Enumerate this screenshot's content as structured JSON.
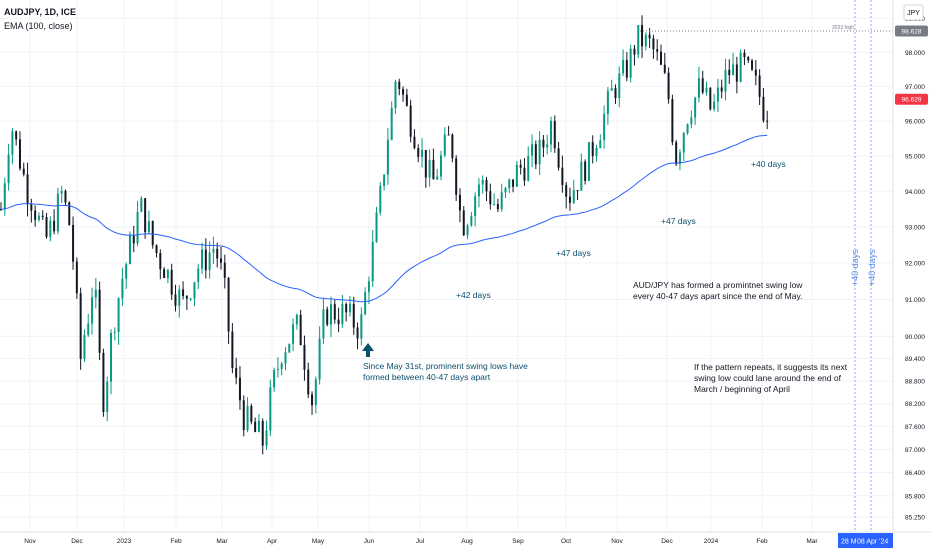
{
  "header": {
    "symbol": "AUDJPY, 1D, ICE",
    "indicator": "EMA (100, close)",
    "currency": "JPY"
  },
  "price_labels": {
    "high_line_label": "2023 high",
    "high_value": "98.628",
    "last_value": "96.629"
  },
  "annotations": {
    "may_note_line1": "Since May 31st, prominent swing lows have",
    "may_note_line2": "formed between 40-47 days apart",
    "pattern_line1": "AUD/JPY has formed a promintnet swing low",
    "pattern_line2": "every 40-47 days apart since the end of May.",
    "next_line1": "If the pattern repeats, it suggests its next",
    "next_line2": "swing low could lane around the end of",
    "next_line3": "March / beginning of April",
    "gap_aug": "+42 days",
    "gap_oct": "+47 days",
    "gap_dec": "+47 days",
    "gap_feb": "+40 days",
    "proj_1": "+40 days",
    "proj_2": "+40 days"
  },
  "time_labels": {
    "left": "28 M",
    "right": "08 Apr '24"
  },
  "colors": {
    "up": "#089981",
    "down": "#131722",
    "ema": "#2962ff",
    "annotation": "#0b4f6c",
    "projection": "#5b8de8",
    "last_price": "#f23645"
  },
  "chart_data": {
    "type": "candlestick",
    "title": "AUDJPY, 1D, ICE",
    "series": [
      {
        "name": "AUDJPY"
      },
      {
        "name": "EMA (100, close)"
      }
    ],
    "y_axis_ticks": [
      "99.000",
      "98.000",
      "97.000",
      "96.000",
      "95.000",
      "94.000",
      "93.000",
      "92.000",
      "91.000",
      "90.000",
      "89.400",
      "88.800",
      "88.200",
      "87.600",
      "87.000",
      "86.400",
      "85.800",
      "85.250"
    ],
    "x_axis_ticks": [
      "Nov",
      "Dec",
      "2023",
      "Feb",
      "Mar",
      "Apr",
      "May",
      "Jun",
      "Jul",
      "Aug",
      "Sep",
      "Oct",
      "Nov",
      "Dec",
      "2024",
      "Feb",
      "Mar"
    ],
    "ylim": [
      85.0,
      99.4
    ],
    "log_scale": true,
    "key_points": [
      {
        "label": "2023 high",
        "y": 98.628
      },
      {
        "label": "last",
        "y": 96.629
      }
    ],
    "price_path": [
      {
        "t": 0,
        "close": 93.5
      },
      {
        "t": 10,
        "close": 95.9
      },
      {
        "t": 25,
        "close": 94.2
      },
      {
        "t": 45,
        "close": 92.6
      },
      {
        "t": 62,
        "close": 94.0
      },
      {
        "t": 70,
        "close": 92.8
      },
      {
        "t": 80,
        "close": 89.4
      },
      {
        "t": 93,
        "close": 91.6
      },
      {
        "t": 102,
        "close": 88.2
      },
      {
        "t": 112,
        "close": 90.3
      },
      {
        "t": 125,
        "close": 92.0
      },
      {
        "t": 140,
        "close": 93.6
      },
      {
        "t": 152,
        "close": 92.5
      },
      {
        "t": 167,
        "close": 91.7
      },
      {
        "t": 182,
        "close": 90.9
      },
      {
        "t": 198,
        "close": 91.9
      },
      {
        "t": 215,
        "close": 92.5
      },
      {
        "t": 225,
        "close": 91.0
      },
      {
        "t": 232,
        "close": 89.1
      },
      {
        "t": 244,
        "close": 87.8
      },
      {
        "t": 262,
        "close": 87.2
      },
      {
        "t": 280,
        "close": 89.6
      },
      {
        "t": 298,
        "close": 90.3
      },
      {
        "t": 312,
        "close": 88.3
      },
      {
        "t": 325,
        "close": 90.7
      },
      {
        "t": 345,
        "close": 90.6
      },
      {
        "t": 360,
        "close": 90.2
      },
      {
        "t": 380,
        "close": 93.8
      },
      {
        "t": 396,
        "close": 97.4
      },
      {
        "t": 410,
        "close": 96.0
      },
      {
        "t": 432,
        "close": 94.2
      },
      {
        "t": 450,
        "close": 95.6
      },
      {
        "t": 462,
        "close": 93.0
      },
      {
        "t": 480,
        "close": 94.3
      },
      {
        "t": 498,
        "close": 93.5
      },
      {
        "t": 518,
        "close": 94.6
      },
      {
        "t": 540,
        "close": 95.1
      },
      {
        "t": 552,
        "close": 96.0
      },
      {
        "t": 568,
        "close": 93.8
      },
      {
        "t": 590,
        "close": 95.0
      },
      {
        "t": 612,
        "close": 96.8
      },
      {
        "t": 628,
        "close": 97.6
      },
      {
        "t": 638,
        "close": 98.4
      },
      {
        "t": 652,
        "close": 98.2
      },
      {
        "t": 668,
        "close": 96.9
      },
      {
        "t": 676,
        "close": 95.0
      },
      {
        "t": 688,
        "close": 96.2
      },
      {
        "t": 700,
        "close": 97.0
      },
      {
        "t": 712,
        "close": 96.3
      },
      {
        "t": 728,
        "close": 97.4
      },
      {
        "t": 745,
        "close": 97.6
      },
      {
        "t": 758,
        "close": 96.9
      },
      {
        "t": 766,
        "close": 96.2
      },
      {
        "t": 772,
        "close": 96.6
      }
    ]
  }
}
